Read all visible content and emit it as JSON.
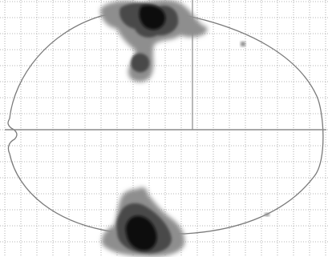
{
  "colors": {
    "background": "#ffffff",
    "grid": "#9c9c9c",
    "outline": "#7a7a7a",
    "crosshair": "#8a8a8a",
    "blob_dark": "#111111",
    "blob_mid": "#4a4a4a",
    "blob_light": "#8e8e8e"
  },
  "view": {
    "kind": "glass-brain-projection",
    "grid": true,
    "crosshair": true
  }
}
